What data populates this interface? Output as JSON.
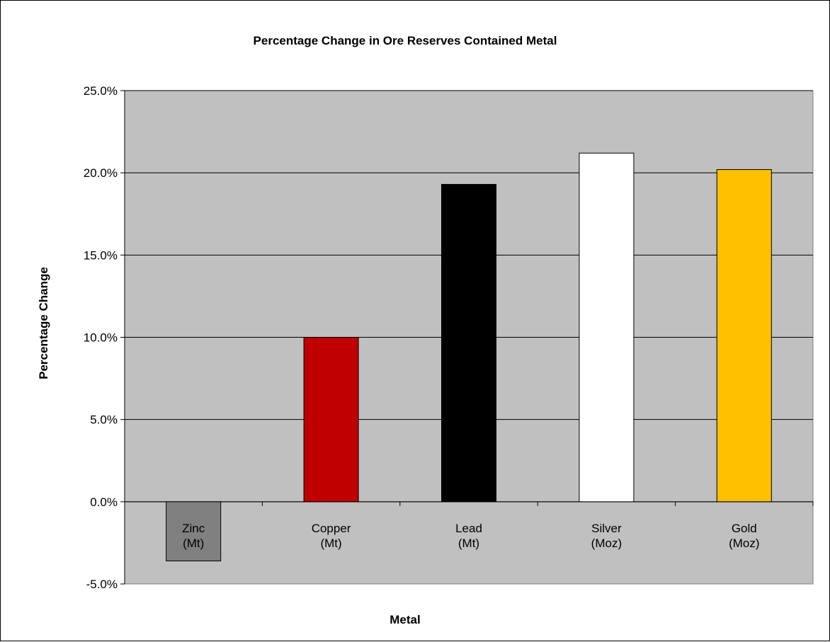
{
  "chart_data": {
    "type": "bar",
    "title": "Percentage Change in Ore Reserves Contained Metal",
    "xlabel": "Metal",
    "ylabel": "Percentage  Change",
    "categories": [
      [
        "Zinc",
        "(Mt)"
      ],
      [
        "Copper",
        "(Mt)"
      ],
      [
        "Lead",
        "(Mt)"
      ],
      [
        "Silver",
        "(Moz)"
      ],
      [
        "Gold",
        "(Moz)"
      ]
    ],
    "values": [
      -3.6,
      10.0,
      19.3,
      21.2,
      20.2
    ],
    "colors": [
      "#808080",
      "#C00000",
      "#000000",
      "#FFFFFF",
      "#FFC000"
    ],
    "yticks": [
      "25.0%",
      "20.0%",
      "15.0%",
      "10.0%",
      "5.0%",
      "0.0%",
      "-5.0%"
    ],
    "ylim": [
      -5,
      25
    ],
    "grid": true,
    "plot_background": "#C0C0C0",
    "legend": "none"
  }
}
